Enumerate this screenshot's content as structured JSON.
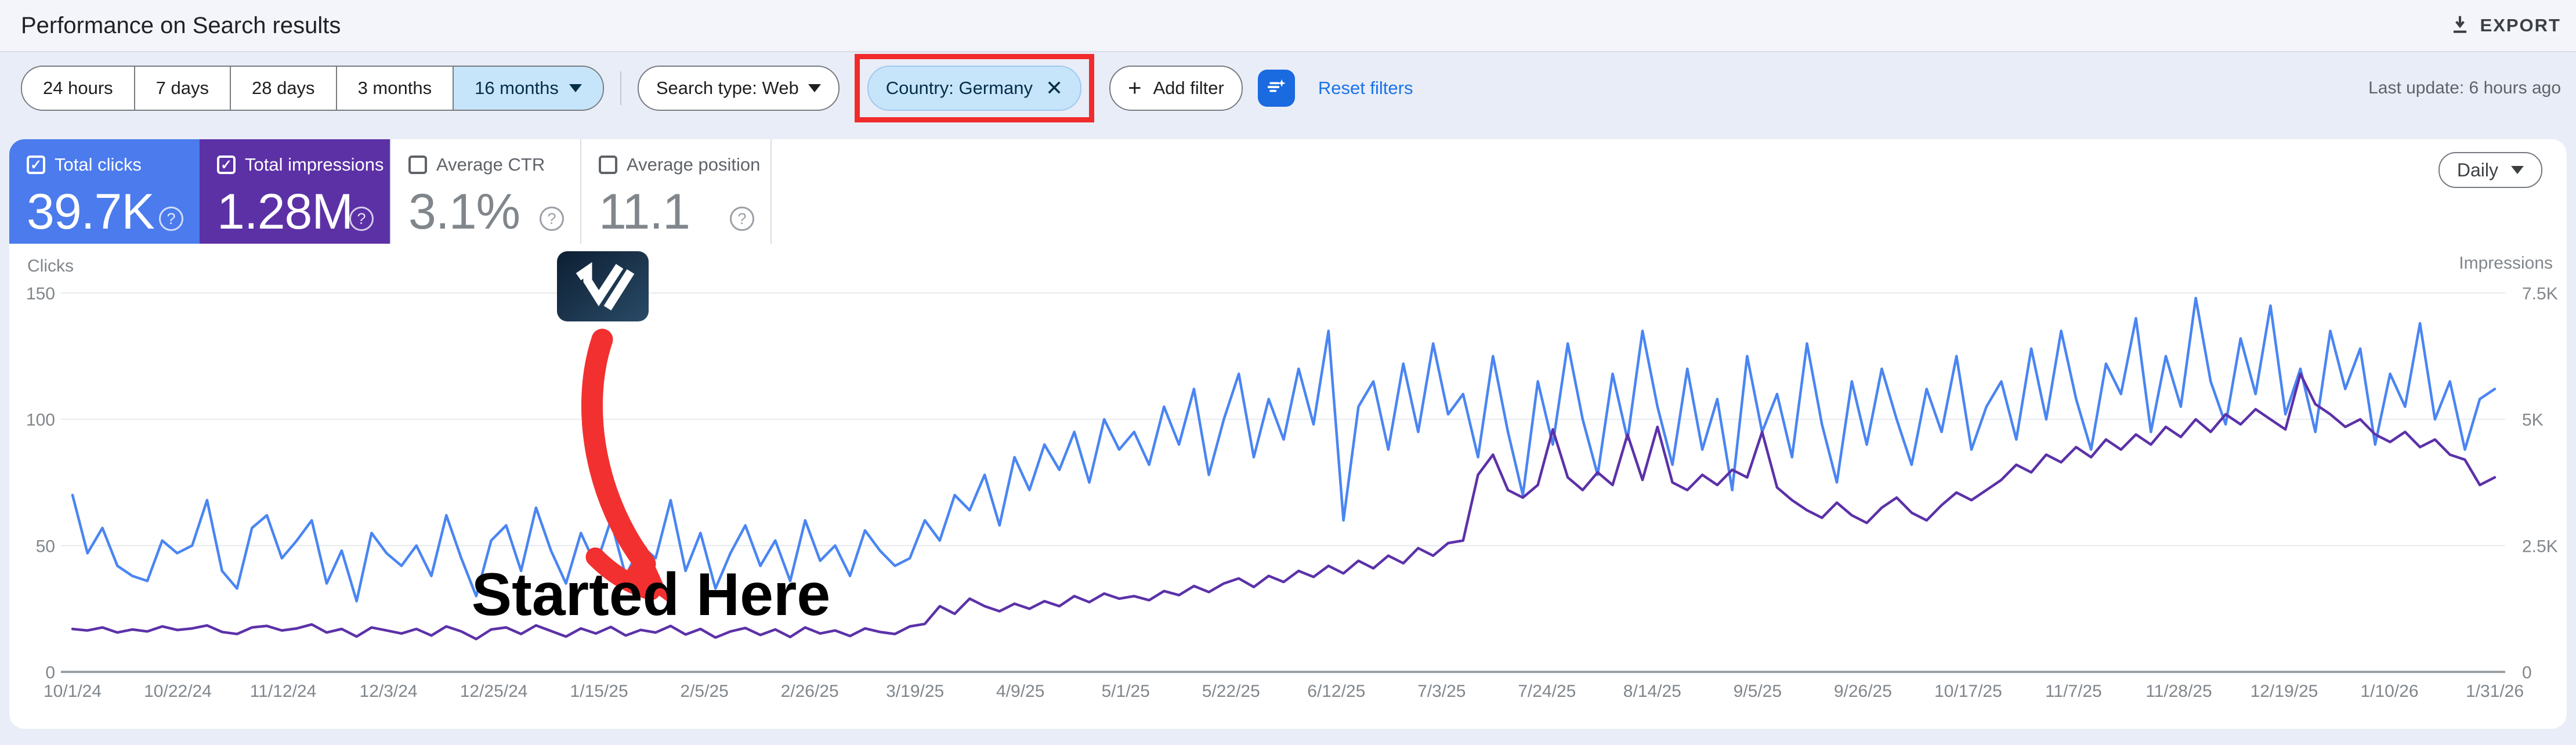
{
  "header": {
    "title": "Performance on Search results",
    "export_label": "EXPORT"
  },
  "filters": {
    "date_ranges": [
      "24 hours",
      "7 days",
      "28 days",
      "3 months",
      "16 months"
    ],
    "selected_date_range": "16 months",
    "search_type_label": "Search type: Web",
    "country_chip_label": "Country: Germany",
    "country_chip_close": "✕",
    "add_filter_label": "Add filter",
    "reset_label": "Reset filters",
    "last_update": "Last update: 6 hours ago"
  },
  "metrics": [
    {
      "label": "Total clicks",
      "value": "39.7K",
      "checked": true,
      "bg": "#4b7bec"
    },
    {
      "label": "Total impressions",
      "value": "1.28M",
      "checked": true,
      "bg": "#5c31a6"
    },
    {
      "label": "Average CTR",
      "value": "3.1%",
      "checked": false,
      "bg": "#ffffff"
    },
    {
      "label": "Average position",
      "value": "11.1",
      "checked": false,
      "bg": "#ffffff"
    }
  ],
  "controls": {
    "granularity": "Daily"
  },
  "annotation": {
    "text": "Started Here",
    "logo": "v-check-logo",
    "arrow_color": "#f23030"
  },
  "colors": {
    "clicks_line": "#4a85f2",
    "impressions_line": "#5c31a8",
    "selected_chip_bg": "#c6e5fb",
    "highlight_red": "#f12b2c",
    "link_blue": "#1a73e8",
    "grid": "#e8eaed",
    "axis": "#9aa0a6",
    "tick_text": "#80868b"
  },
  "chart_data": {
    "type": "line",
    "title": "Clicks and Impressions over time (Daily)",
    "x_ticks": [
      "10/1/24",
      "10/22/24",
      "11/12/24",
      "12/3/24",
      "12/25/24",
      "1/15/25",
      "2/5/25",
      "2/26/25",
      "3/19/25",
      "4/9/25",
      "5/1/25",
      "5/22/25",
      "6/12/25",
      "7/3/25",
      "7/24/25",
      "8/14/25",
      "9/5/25",
      "9/26/25",
      "10/17/25",
      "11/7/25",
      "11/28/25",
      "12/19/25",
      "1/10/26",
      "1/31/26"
    ],
    "left_axis": {
      "label": "Clicks",
      "ticks": [
        0,
        50,
        100,
        150
      ],
      "range": [
        0,
        150
      ]
    },
    "right_axis": {
      "label": "Impressions",
      "ticks": [
        "0",
        "2.5K",
        "5K",
        "7.5K"
      ],
      "range_k": [
        0,
        7.5
      ]
    },
    "grid": true,
    "legend_position": "none",
    "series": [
      {
        "name": "Clicks",
        "axis": "left",
        "color": "#4a85f2",
        "values": [
          70,
          47,
          57,
          42,
          38,
          36,
          52,
          47,
          50,
          68,
          40,
          33,
          57,
          62,
          45,
          52,
          60,
          35,
          48,
          28,
          55,
          47,
          42,
          50,
          38,
          62,
          45,
          30,
          52,
          58,
          40,
          65,
          48,
          35,
          55,
          42,
          60,
          38,
          50,
          45,
          68,
          40,
          55,
          33,
          47,
          58,
          42,
          52,
          36,
          60,
          44,
          50,
          38,
          56,
          48,
          42,
          45,
          60,
          52,
          70,
          64,
          78,
          58,
          85,
          72,
          90,
          80,
          95,
          75,
          100,
          88,
          95,
          82,
          105,
          90,
          112,
          78,
          100,
          118,
          85,
          108,
          92,
          120,
          98,
          135,
          60,
          105,
          115,
          88,
          122,
          95,
          130,
          102,
          110,
          85,
          125,
          95,
          70,
          115,
          90,
          130,
          100,
          78,
          118,
          92,
          135,
          105,
          82,
          120,
          88,
          108,
          72,
          125,
          95,
          110,
          85,
          130,
          98,
          75,
          115,
          90,
          120,
          100,
          82,
          112,
          95,
          125,
          88,
          105,
          115,
          92,
          128,
          100,
          135,
          108,
          88,
          122,
          110,
          140,
          95,
          125,
          105,
          148,
          115,
          98,
          132,
          110,
          145,
          102,
          120,
          95,
          135,
          112,
          128,
          90,
          118,
          105,
          138,
          100,
          115,
          88,
          108,
          112
        ]
      },
      {
        "name": "Impressions",
        "axis": "right",
        "color": "#5c31a8",
        "values_k": [
          0.85,
          0.82,
          0.88,
          0.78,
          0.84,
          0.8,
          0.9,
          0.83,
          0.86,
          0.92,
          0.79,
          0.75,
          0.88,
          0.91,
          0.82,
          0.86,
          0.94,
          0.78,
          0.85,
          0.7,
          0.88,
          0.82,
          0.76,
          0.85,
          0.72,
          0.9,
          0.8,
          0.65,
          0.84,
          0.88,
          0.75,
          0.92,
          0.81,
          0.7,
          0.86,
          0.76,
          0.89,
          0.72,
          0.83,
          0.78,
          0.91,
          0.74,
          0.85,
          0.68,
          0.8,
          0.87,
          0.73,
          0.84,
          0.69,
          0.88,
          0.76,
          0.82,
          0.71,
          0.86,
          0.79,
          0.75,
          0.9,
          0.95,
          1.3,
          1.15,
          1.45,
          1.3,
          1.2,
          1.35,
          1.25,
          1.4,
          1.3,
          1.5,
          1.38,
          1.55,
          1.45,
          1.5,
          1.42,
          1.6,
          1.52,
          1.7,
          1.58,
          1.75,
          1.85,
          1.68,
          1.9,
          1.78,
          2.0,
          1.88,
          2.1,
          1.95,
          2.2,
          2.05,
          2.3,
          2.15,
          2.45,
          2.3,
          2.55,
          2.6,
          3.9,
          4.3,
          3.6,
          3.45,
          3.7,
          4.8,
          3.85,
          3.6,
          3.95,
          3.7,
          4.7,
          3.8,
          4.85,
          3.75,
          3.6,
          3.9,
          3.7,
          4.0,
          3.85,
          4.75,
          3.65,
          3.4,
          3.2,
          3.05,
          3.35,
          3.1,
          2.95,
          3.25,
          3.45,
          3.15,
          3.0,
          3.3,
          3.55,
          3.4,
          3.6,
          3.8,
          4.1,
          3.95,
          4.3,
          4.15,
          4.45,
          4.25,
          4.6,
          4.4,
          4.7,
          4.5,
          4.85,
          4.65,
          5.0,
          4.75,
          5.1,
          4.9,
          5.2,
          5.0,
          4.8,
          5.9,
          5.3,
          5.1,
          4.85,
          5.0,
          4.7,
          4.55,
          4.75,
          4.45,
          4.6,
          4.3,
          4.2,
          3.7,
          3.85
        ]
      }
    ]
  }
}
